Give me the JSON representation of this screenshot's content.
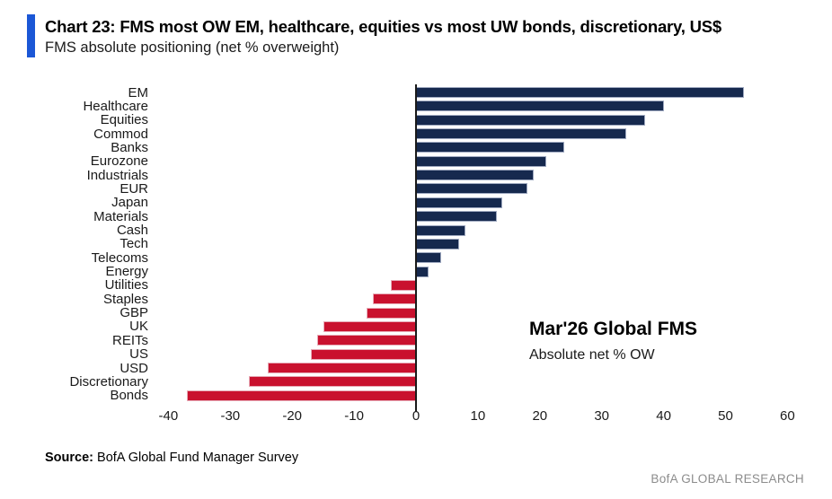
{
  "header": {
    "title": "Chart 23: FMS most OW EM, healthcare, equities vs most UW bonds, discretionary, US$",
    "subtitle": "FMS absolute positioning (net % overweight)",
    "accent_color": "#1b57d6"
  },
  "chart_data": {
    "type": "bar",
    "orientation": "horizontal",
    "title": "FMS absolute positioning (net % overweight)",
    "categories": [
      "EM",
      "Healthcare",
      "Equities",
      "Commod",
      "Banks",
      "Eurozone",
      "Industrials",
      "EUR",
      "Japan",
      "Materials",
      "Cash",
      "Tech",
      "Telecoms",
      "Energy",
      "Utilities",
      "Staples",
      "GBP",
      "UK",
      "REITs",
      "US",
      "USD",
      "Discretionary",
      "Bonds"
    ],
    "values": [
      53,
      40,
      37,
      34,
      24,
      21,
      19,
      18,
      14,
      13,
      8,
      7,
      4,
      2,
      -4,
      -7,
      -8,
      -15,
      -16,
      -17,
      -24,
      -27,
      -37
    ],
    "x_ticks": [
      -40,
      -30,
      -20,
      -10,
      0,
      10,
      20,
      30,
      40,
      50,
      60
    ],
    "xlim": [
      -44,
      62
    ],
    "grid": false,
    "legend": "none",
    "positive_color": "#16294e",
    "negative_color": "#c9112e",
    "annotation": {
      "title": "Mar'26 Global FMS",
      "subtitle": "Absolute net % OW"
    }
  },
  "footer": {
    "source_label": "Source:",
    "source_text": " BofA Global Fund Manager Survey",
    "brand": "BofA GLOBAL RESEARCH"
  }
}
